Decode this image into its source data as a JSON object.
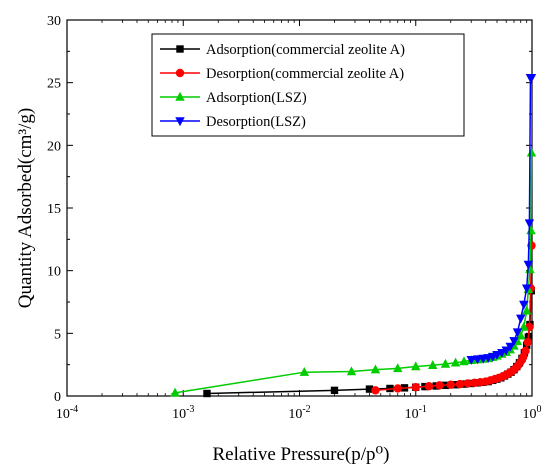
{
  "chart_data": {
    "type": "line",
    "xlabel": "Relative Pressure(p/p⁰)",
    "ylabel": "Quantity Adsorbed(cm³/g)",
    "xscale": "log",
    "xlim": [
      0.0001,
      1
    ],
    "ylim": [
      0,
      30
    ],
    "x_ticks": [
      {
        "value": 0.0001,
        "base": "10",
        "exp": "-4"
      },
      {
        "value": 0.001,
        "base": "10",
        "exp": "-3"
      },
      {
        "value": 0.01,
        "base": "10",
        "exp": "-2"
      },
      {
        "value": 0.1,
        "base": "10",
        "exp": "-1"
      },
      {
        "value": 1,
        "base": "10",
        "exp": "0"
      }
    ],
    "y_ticks": [
      0,
      5,
      10,
      15,
      20,
      25,
      30
    ],
    "grid": false,
    "legend_position": "top-center",
    "series": [
      {
        "name": "Adsorption(commercial zeolite A)",
        "color": "#000000",
        "marker": "square",
        "x": [
          0.0016,
          0.02,
          0.04,
          0.06,
          0.08,
          0.1,
          0.12,
          0.15,
          0.18,
          0.22,
          0.26,
          0.3,
          0.34,
          0.38,
          0.42,
          0.46,
          0.5,
          0.54,
          0.58,
          0.62,
          0.66,
          0.7,
          0.74,
          0.78,
          0.82,
          0.86,
          0.9,
          0.93,
          0.96,
          0.985
        ],
        "values": [
          0.2,
          0.45,
          0.55,
          0.6,
          0.65,
          0.7,
          0.75,
          0.8,
          0.85,
          0.9,
          0.95,
          1.0,
          1.05,
          1.1,
          1.15,
          1.25,
          1.35,
          1.45,
          1.6,
          1.75,
          1.9,
          2.1,
          2.35,
          2.65,
          3.0,
          3.45,
          4.05,
          4.7,
          5.7,
          8.4
        ]
      },
      {
        "name": "Desorption(commercial zeolite A)",
        "color": "#ff0000",
        "marker": "circle",
        "x": [
          0.045,
          0.07,
          0.1,
          0.13,
          0.16,
          0.2,
          0.24,
          0.28,
          0.32,
          0.36,
          0.4,
          0.44,
          0.48,
          0.52,
          0.56,
          0.6,
          0.64,
          0.68,
          0.72,
          0.76,
          0.8,
          0.84,
          0.88,
          0.92,
          0.95,
          0.975,
          0.99
        ],
        "values": [
          0.45,
          0.6,
          0.7,
          0.78,
          0.85,
          0.9,
          0.95,
          1.0,
          1.05,
          1.1,
          1.15,
          1.25,
          1.35,
          1.45,
          1.55,
          1.7,
          1.85,
          2.0,
          2.2,
          2.45,
          2.75,
          3.1,
          3.6,
          4.3,
          5.5,
          8.6,
          12.0
        ]
      },
      {
        "name": "Adsorption(LSZ)",
        "color": "#00cc00",
        "marker": "triangle-up",
        "x": [
          0.00085,
          0.011,
          0.028,
          0.045,
          0.07,
          0.1,
          0.14,
          0.18,
          0.22,
          0.26,
          0.3,
          0.34,
          0.38,
          0.42,
          0.46,
          0.5,
          0.55,
          0.6,
          0.65,
          0.7,
          0.75,
          0.8,
          0.85,
          0.9,
          0.93,
          0.96,
          0.98,
          0.99
        ],
        "values": [
          0.25,
          1.9,
          1.95,
          2.1,
          2.2,
          2.35,
          2.45,
          2.55,
          2.65,
          2.75,
          2.85,
          2.9,
          2.95,
          3.0,
          3.1,
          3.2,
          3.35,
          3.5,
          3.7,
          4.0,
          4.35,
          4.8,
          5.5,
          6.8,
          8.5,
          10.1,
          13.2,
          19.4
        ]
      },
      {
        "name": "Desorption(LSZ)",
        "color": "#0000ff",
        "marker": "triangle-down",
        "x": [
          0.3,
          0.34,
          0.38,
          0.42,
          0.46,
          0.5,
          0.55,
          0.6,
          0.65,
          0.7,
          0.75,
          0.8,
          0.85,
          0.9,
          0.93,
          0.95,
          0.97,
          0.98,
          0.99
        ],
        "values": [
          2.9,
          2.95,
          3.0,
          3.05,
          3.15,
          3.3,
          3.45,
          3.65,
          3.95,
          4.4,
          5.1,
          6.2,
          7.3,
          8.6,
          10.5,
          13.8,
          25.4,
          25.4,
          25.4
        ]
      }
    ]
  }
}
